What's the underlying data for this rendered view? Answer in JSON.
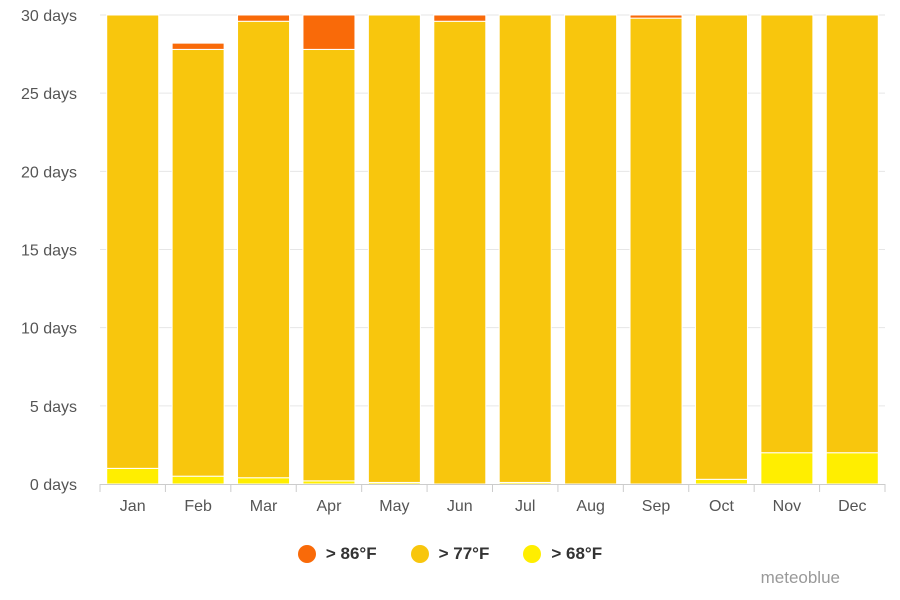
{
  "chart_data": {
    "type": "bar",
    "stacked": true,
    "categories": [
      "Jan",
      "Feb",
      "Mar",
      "Apr",
      "May",
      "Jun",
      "Jul",
      "Aug",
      "Sep",
      "Oct",
      "Nov",
      "Dec"
    ],
    "ylim": [
      0,
      30
    ],
    "yticks": [
      "0 days",
      "5 days",
      "10 days",
      "15 days",
      "20 days",
      "25 days",
      "30 days"
    ],
    "grid": true,
    "legend_position": "bottom-center",
    "series": [
      {
        "name": "> 68°F",
        "color": "#ffee00",
        "values": [
          1.0,
          0.5,
          0.4,
          0.2,
          0.1,
          0.0,
          0.1,
          0.0,
          0.0,
          0.3,
          2.0,
          2.0
        ]
      },
      {
        "name": "> 77°F",
        "color": "#f8c60d",
        "values": [
          29.0,
          27.3,
          29.2,
          27.6,
          29.9,
          29.6,
          29.9,
          30.0,
          29.8,
          29.7,
          28.0,
          28.0
        ]
      },
      {
        "name": "> 86°F",
        "color": "#f96a09",
        "values": [
          0.0,
          0.4,
          0.4,
          2.2,
          0.0,
          0.4,
          0.0,
          0.0,
          0.2,
          0.0,
          0.0,
          0.0
        ]
      }
    ]
  },
  "legend": {
    "items": [
      {
        "label": "> 86°F",
        "color": "#f96a09"
      },
      {
        "label": "> 77°F",
        "color": "#f8c60d"
      },
      {
        "label": "> 68°F",
        "color": "#ffee00"
      }
    ]
  },
  "credit": "meteoblue"
}
